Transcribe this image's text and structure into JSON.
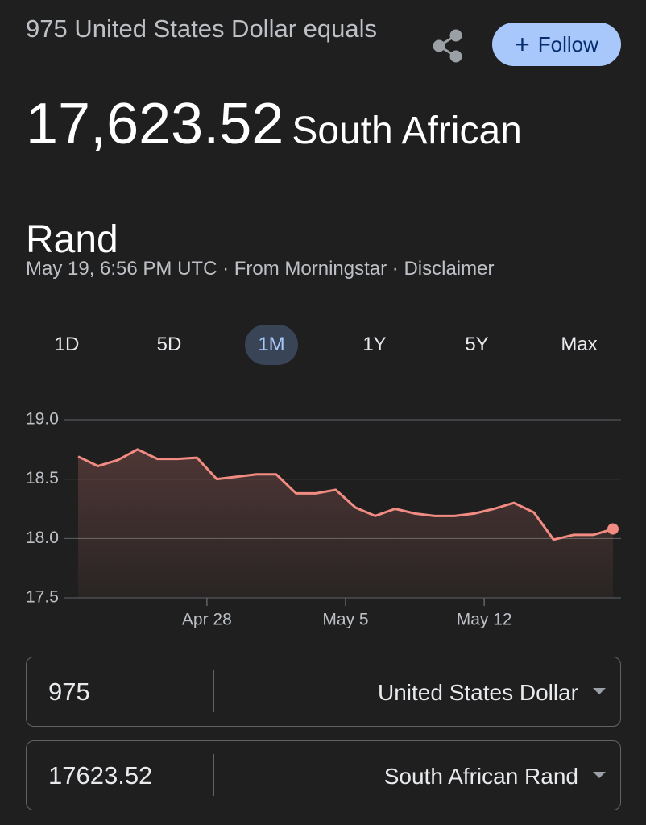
{
  "header": {
    "subtitle": "975 United States Dollar equals",
    "amount": "17,623.52",
    "currency": "South African Rand",
    "follow": "Follow",
    "source": "May 19, 6:56 PM UTC · From Morningstar · Disclaimer"
  },
  "ranges": {
    "items": [
      "1D",
      "5D",
      "1M",
      "1Y",
      "5Y",
      "Max"
    ],
    "active": "1M"
  },
  "chart_data": {
    "type": "line",
    "categories": [
      null,
      null,
      null,
      null,
      null,
      null,
      null,
      "Apr 28",
      null,
      null,
      null,
      null,
      null,
      null,
      "May 5",
      null,
      null,
      null,
      null,
      null,
      null,
      "May 12",
      null,
      null,
      null,
      null,
      null,
      null
    ],
    "values": [
      18.69,
      18.61,
      18.66,
      18.75,
      18.67,
      18.67,
      18.68,
      18.5,
      18.52,
      18.54,
      18.54,
      18.38,
      18.38,
      18.41,
      18.26,
      18.19,
      18.25,
      18.21,
      18.19,
      18.19,
      18.21,
      18.25,
      18.3,
      18.22,
      17.99,
      18.03,
      18.03,
      18.08
    ],
    "color": "#f28b82",
    "ylim": [
      17.5,
      19.0
    ],
    "yticks": [
      {
        "value": 19,
        "label": "19.0"
      },
      18.5,
      {
        "value": 18,
        "label": "18.0"
      },
      17.5
    ],
    "grid": true,
    "area": true
  },
  "converter": {
    "rows": [
      {
        "amount": "975",
        "currency": "United States Dollar"
      },
      {
        "amount": "17623.52",
        "currency": "South African Rand"
      }
    ]
  }
}
